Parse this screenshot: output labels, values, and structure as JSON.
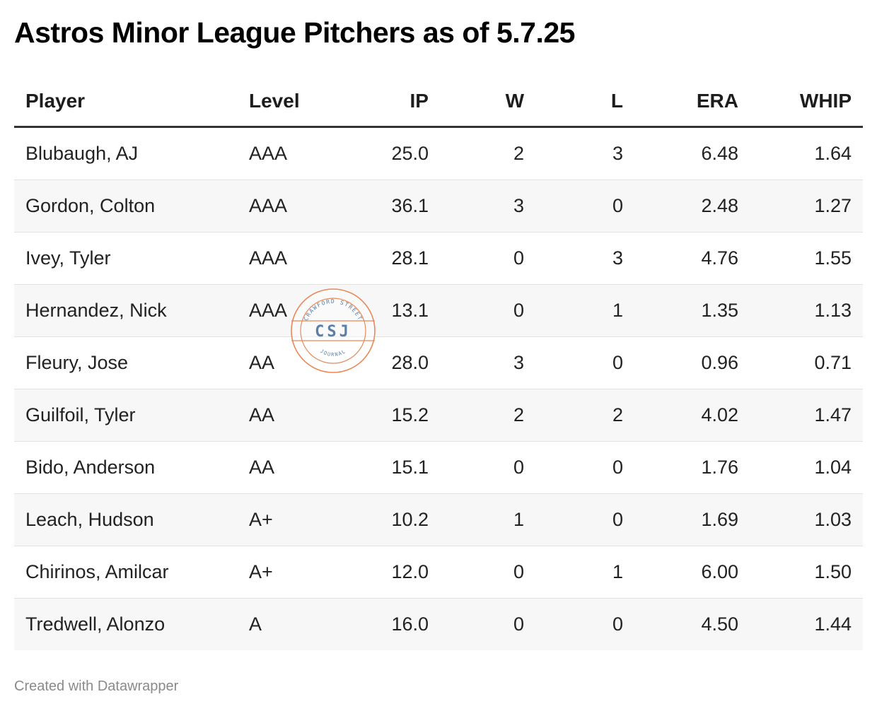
{
  "title": "Astros Minor League Pitchers as of 5.7.25",
  "columns": [
    {
      "key": "player",
      "label": "Player",
      "align": "left"
    },
    {
      "key": "level",
      "label": "Level",
      "align": "left"
    },
    {
      "key": "ip",
      "label": "IP",
      "align": "right"
    },
    {
      "key": "w",
      "label": "W",
      "align": "right"
    },
    {
      "key": "l",
      "label": "L",
      "align": "right"
    },
    {
      "key": "era",
      "label": "ERA",
      "align": "right"
    },
    {
      "key": "whip",
      "label": "WHIP",
      "align": "right"
    }
  ],
  "chart_data": {
    "type": "table",
    "title": "Astros Minor League Pitchers as of 5.7.25",
    "headers": [
      "Player",
      "Level",
      "IP",
      "W",
      "L",
      "ERA",
      "WHIP"
    ],
    "rows": [
      [
        "Blubaugh, AJ",
        "AAA",
        "25.0",
        "2",
        "3",
        "6.48",
        "1.64"
      ],
      [
        "Gordon, Colton",
        "AAA",
        "36.1",
        "3",
        "0",
        "2.48",
        "1.27"
      ],
      [
        "Ivey, Tyler",
        "AAA",
        "28.1",
        "0",
        "3",
        "4.76",
        "1.55"
      ],
      [
        "Hernandez, Nick",
        "AAA",
        "13.1",
        "0",
        "1",
        "1.35",
        "1.13"
      ],
      [
        "Fleury, Jose",
        "AA",
        "28.0",
        "3",
        "0",
        "0.96",
        "0.71"
      ],
      [
        "Guilfoil, Tyler",
        "AA",
        "15.2",
        "2",
        "2",
        "4.02",
        "1.47"
      ],
      [
        "Bido, Anderson",
        "AA",
        "15.1",
        "0",
        "0",
        "1.76",
        "1.04"
      ],
      [
        "Leach, Hudson",
        "A+",
        "10.2",
        "1",
        "0",
        "1.69",
        "1.03"
      ],
      [
        "Chirinos, Amilcar",
        "A+",
        "12.0",
        "0",
        "1",
        "6.00",
        "1.50"
      ],
      [
        "Tredwell, Alonzo",
        "A",
        "16.0",
        "0",
        "0",
        "4.50",
        "1.44"
      ]
    ]
  },
  "watermark": {
    "top_text": "CRAWFORD STREET",
    "center_text": "CSJ",
    "bottom_text": "JOURNAL",
    "ring_color": "#e8895a",
    "text_color": "#5a7fa8"
  },
  "colors": {
    "row_stripe": "#f7f7f7",
    "header_rule": "#333333",
    "footer_text": "#8a8a8a"
  },
  "footer": "Created with Datawrapper"
}
